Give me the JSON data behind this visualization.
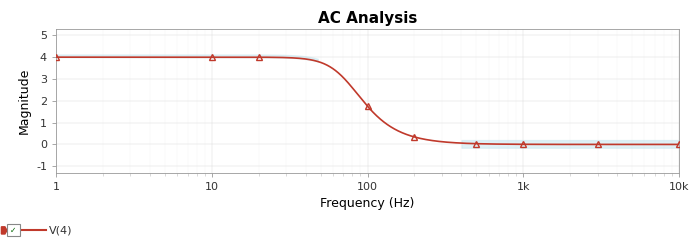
{
  "title": "AC Analysis",
  "xlabel": "Frequency (Hz)",
  "ylabel": "Magnitude",
  "background_color": "#ffffff",
  "plot_bg_color": "#ffffff",
  "line_color": "#c0392b",
  "marker_color": "#c0392b",
  "fill_top_color": "#cce8f0",
  "fill_top_alpha": 0.6,
  "fill_bottom_color": "#cce8f0",
  "fill_bottom_alpha": 0.6,
  "ylim": [
    -1.3,
    5.3
  ],
  "xticks_labels": [
    "1",
    "10",
    "100",
    "1k",
    "10k"
  ],
  "xticks_vals": [
    1,
    10,
    100,
    1000,
    10000
  ],
  "yticks": [
    -1,
    0,
    1,
    2,
    3,
    4,
    5
  ],
  "legend_label": "V(4)",
  "legend_line_color": "#c0392b",
  "fc": 75.0,
  "A": 4.0,
  "n_order": 2.5
}
